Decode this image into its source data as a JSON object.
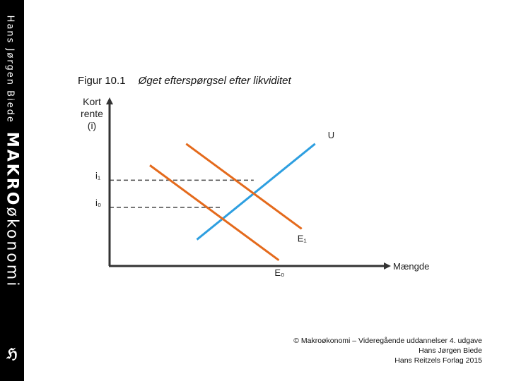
{
  "sidebar": {
    "author": "Hans Jørgen Biede",
    "brand_bold": "MAKRO",
    "brand_rest": "økonomi",
    "logo_text": "ℌ",
    "background": "#000000"
  },
  "figure": {
    "number": "Figur 10.1",
    "title": "Øget efterspørgsel efter likviditet"
  },
  "chart_data": {
    "type": "line",
    "ylabel": [
      "Kort",
      "rente",
      "(i)"
    ],
    "xlabel": "Mængde",
    "xlim": [
      0,
      10
    ],
    "ylim": [
      0,
      10
    ],
    "levels": [
      {
        "name": "i₁",
        "y": 5.2
      },
      {
        "name": "i₀",
        "y": 3.55
      }
    ],
    "series": [
      {
        "name": "U",
        "color": "#2e9fe0",
        "points": [
          [
            3.25,
            1.6
          ],
          [
            7.65,
            7.4
          ]
        ]
      },
      {
        "name": "E₁",
        "color": "#e46a1c",
        "points": [
          [
            2.85,
            7.4
          ],
          [
            7.15,
            2.25
          ]
        ]
      },
      {
        "name": "E₀",
        "color": "#e46a1c",
        "points": [
          [
            1.5,
            6.1
          ],
          [
            6.3,
            0.35
          ]
        ]
      }
    ]
  },
  "copyright": {
    "line1": "© Makroøkonomi – Videregående uddannelser 4. udgave",
    "line2": "Hans Jørgen Biede",
    "line3": "Hans Reitzels Forlag 2015"
  }
}
